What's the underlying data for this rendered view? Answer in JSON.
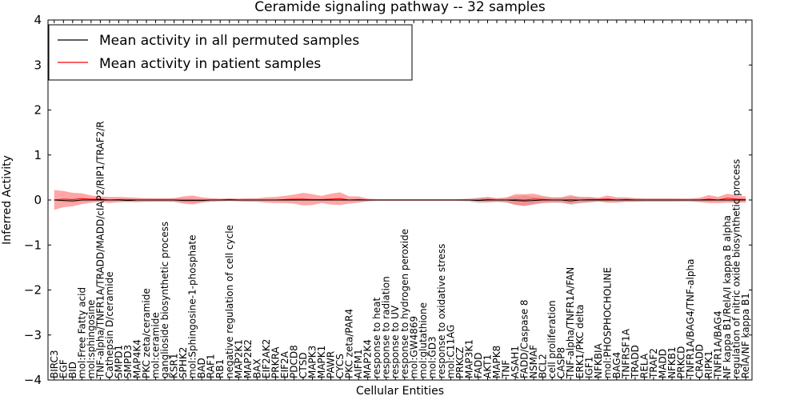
{
  "chart_data": {
    "type": "line",
    "title": "Ceramide signaling pathway -- 32 samples",
    "xlabel": "Cellular Entities",
    "ylabel": "Inferred Activity",
    "ylim": [
      -4,
      4
    ],
    "yticks": [
      -4,
      -3,
      -2,
      -1,
      0,
      1,
      2,
      3,
      4
    ],
    "ytick_labels": [
      "−4",
      "−3",
      "−2",
      "−1",
      "0",
      "1",
      "2",
      "3",
      "4"
    ],
    "grid": false,
    "legend_position": "top-left",
    "categories": [
      "BIRC3",
      "EGF",
      "BID",
      "mol:Free Fatty acid",
      "mol:sphingosine",
      "TNF-alpha/TNFR1A/TRADD/MADD/cIAP2/RIP1/TRAF2/R",
      "Cathepsin D/ceramide",
      "SMPD1",
      "SMPD3",
      "MAP4K4",
      "PKC zeta/ceramide",
      "mol:ceramide",
      "ganglioside biosynthetic process",
      "KSR1",
      "SPHK2",
      "mol:Sphingosine-1-phosphate",
      "BAD",
      "RAF1",
      "RB1",
      "negative regulation of cell cycle",
      "MAP2K1",
      "MAP2K2",
      "BAX",
      "EIF2AK2",
      "PRKRA",
      "EIF2A",
      "PDCD8",
      "CTSD",
      "MAPK3",
      "MAPK1",
      "PAWR",
      "CYCS",
      "PKC zeta/PAR4",
      "AIFM1",
      "MAP2K4",
      "response to heat",
      "response to radiation",
      "response to UV",
      "response to hydrogen peroxide",
      "mol:GW4869",
      "mol:glutathione",
      "mol:GD3",
      "response to oxidative stress",
      "mol:C11AG",
      "PRKCZ",
      "MAP3K1",
      "FADD",
      "AKT1",
      "MAPK8",
      "TNF",
      "ASAH1",
      "FADD/Caspase 8",
      "NSMAF",
      "BCL2",
      "cell proliferation",
      "CASP8",
      "TNF-alpha/TNFR1A/FAN",
      "ERK1/PKC delta",
      "IGF1",
      "NFKBIA",
      "mol:PHOSPHOCHOLINE",
      "BAG4",
      "TNFRSF1A",
      "TRADD",
      "RELA",
      "TRAF2",
      "MADD",
      "NFKB1",
      "PRKCD",
      "TNFR1A/BAG4/TNF-alpha",
      "CRADD",
      "RIPK1",
      "TNFR1A/BAG4",
      "NF kappa B1/RelA/I kappa B alpha",
      "regulation of nitric oxide biosynthetic process",
      "RelA/NF kappa B1"
    ],
    "series": [
      {
        "name": "Mean activity in all permuted samples",
        "color": "#000000",
        "values": [
          0.0,
          -0.01,
          -0.02,
          0.0,
          0.0,
          0.0,
          0.0,
          0.0,
          -0.01,
          0.0,
          0.0,
          0.0,
          0.0,
          0.0,
          -0.01,
          -0.01,
          -0.01,
          0.0,
          0.0,
          0.0,
          0.0,
          0.0,
          0.0,
          0.0,
          0.0,
          0.0,
          0.0,
          0.0,
          0.0,
          0.0,
          0.0,
          0.0,
          0.0,
          0.0,
          0.0,
          0.0,
          0.0,
          0.0,
          0.0,
          0.0,
          0.0,
          0.0,
          0.0,
          0.0,
          0.0,
          0.0,
          -0.01,
          0.0,
          0.0,
          0.0,
          -0.01,
          -0.02,
          -0.01,
          0.0,
          0.0,
          0.0,
          -0.02,
          0.0,
          0.0,
          0.0,
          0.0,
          0.0,
          0.0,
          0.0,
          0.0,
          0.0,
          0.0,
          0.0,
          0.0,
          0.0,
          0.0,
          0.0,
          0.0,
          0.0,
          0.0,
          0.0
        ],
        "band": [
          0.02,
          0.03,
          0.04,
          0.03,
          0.02,
          0.02,
          0.02,
          0.02,
          0.03,
          0.03,
          0.03,
          0.03,
          0.03,
          0.04,
          0.04,
          0.04,
          0.03,
          0.02,
          0.02,
          0.02,
          0.02,
          0.02,
          0.02,
          0.02,
          0.02,
          0.02,
          0.02,
          0.02,
          0.02,
          0.02,
          0.02,
          0.02,
          0.02,
          0.02,
          0.02,
          0.01,
          0.01,
          0.01,
          0.01,
          0.01,
          0.01,
          0.01,
          0.01,
          0.01,
          0.02,
          0.04,
          0.07,
          0.06,
          0.04,
          0.06,
          0.09,
          0.12,
          0.08,
          0.06,
          0.05,
          0.06,
          0.09,
          0.08,
          0.06,
          0.04,
          0.04,
          0.04,
          0.04,
          0.04,
          0.04,
          0.04,
          0.04,
          0.04,
          0.03,
          0.03,
          0.03,
          0.03,
          0.03,
          0.03,
          0.03,
          0.03
        ]
      },
      {
        "name": "Mean activity in patient samples",
        "color": "#ff0000",
        "values": [
          0.0,
          0.02,
          0.01,
          0.03,
          0.02,
          0.02,
          0.0,
          0.01,
          0.01,
          0.0,
          0.0,
          0.0,
          0.0,
          0.0,
          0.0,
          0.0,
          0.0,
          0.0,
          0.0,
          0.01,
          0.0,
          0.0,
          0.0,
          0.0,
          0.0,
          0.01,
          0.02,
          0.02,
          0.01,
          0.01,
          0.02,
          0.03,
          0.0,
          0.01,
          0.0,
          0.0,
          0.0,
          0.0,
          0.0,
          0.0,
          0.0,
          0.0,
          0.0,
          0.0,
          0.0,
          0.0,
          0.0,
          0.01,
          0.0,
          0.0,
          0.01,
          0.0,
          0.02,
          0.01,
          0.0,
          0.0,
          0.01,
          0.0,
          0.01,
          0.01,
          0.02,
          0.0,
          0.01,
          0.0,
          0.0,
          0.0,
          0.0,
          0.0,
          0.0,
          0.0,
          0.0,
          0.02,
          0.0,
          0.04,
          0.02,
          0.01
        ],
        "band": [
          0.22,
          0.18,
          0.15,
          0.12,
          0.08,
          0.06,
          0.07,
          0.06,
          0.05,
          0.05,
          0.04,
          0.04,
          0.04,
          0.04,
          0.08,
          0.1,
          0.06,
          0.04,
          0.03,
          0.03,
          0.03,
          0.04,
          0.04,
          0.06,
          0.07,
          0.08,
          0.1,
          0.14,
          0.12,
          0.08,
          0.12,
          0.14,
          0.08,
          0.07,
          0.03,
          0.02,
          0.02,
          0.02,
          0.02,
          0.02,
          0.02,
          0.02,
          0.02,
          0.02,
          0.02,
          0.02,
          0.04,
          0.06,
          0.04,
          0.05,
          0.12,
          0.13,
          0.12,
          0.08,
          0.06,
          0.06,
          0.1,
          0.06,
          0.06,
          0.04,
          0.08,
          0.06,
          0.05,
          0.04,
          0.03,
          0.03,
          0.03,
          0.03,
          0.03,
          0.03,
          0.05,
          0.09,
          0.07,
          0.1,
          0.08,
          0.07
        ]
      }
    ]
  }
}
